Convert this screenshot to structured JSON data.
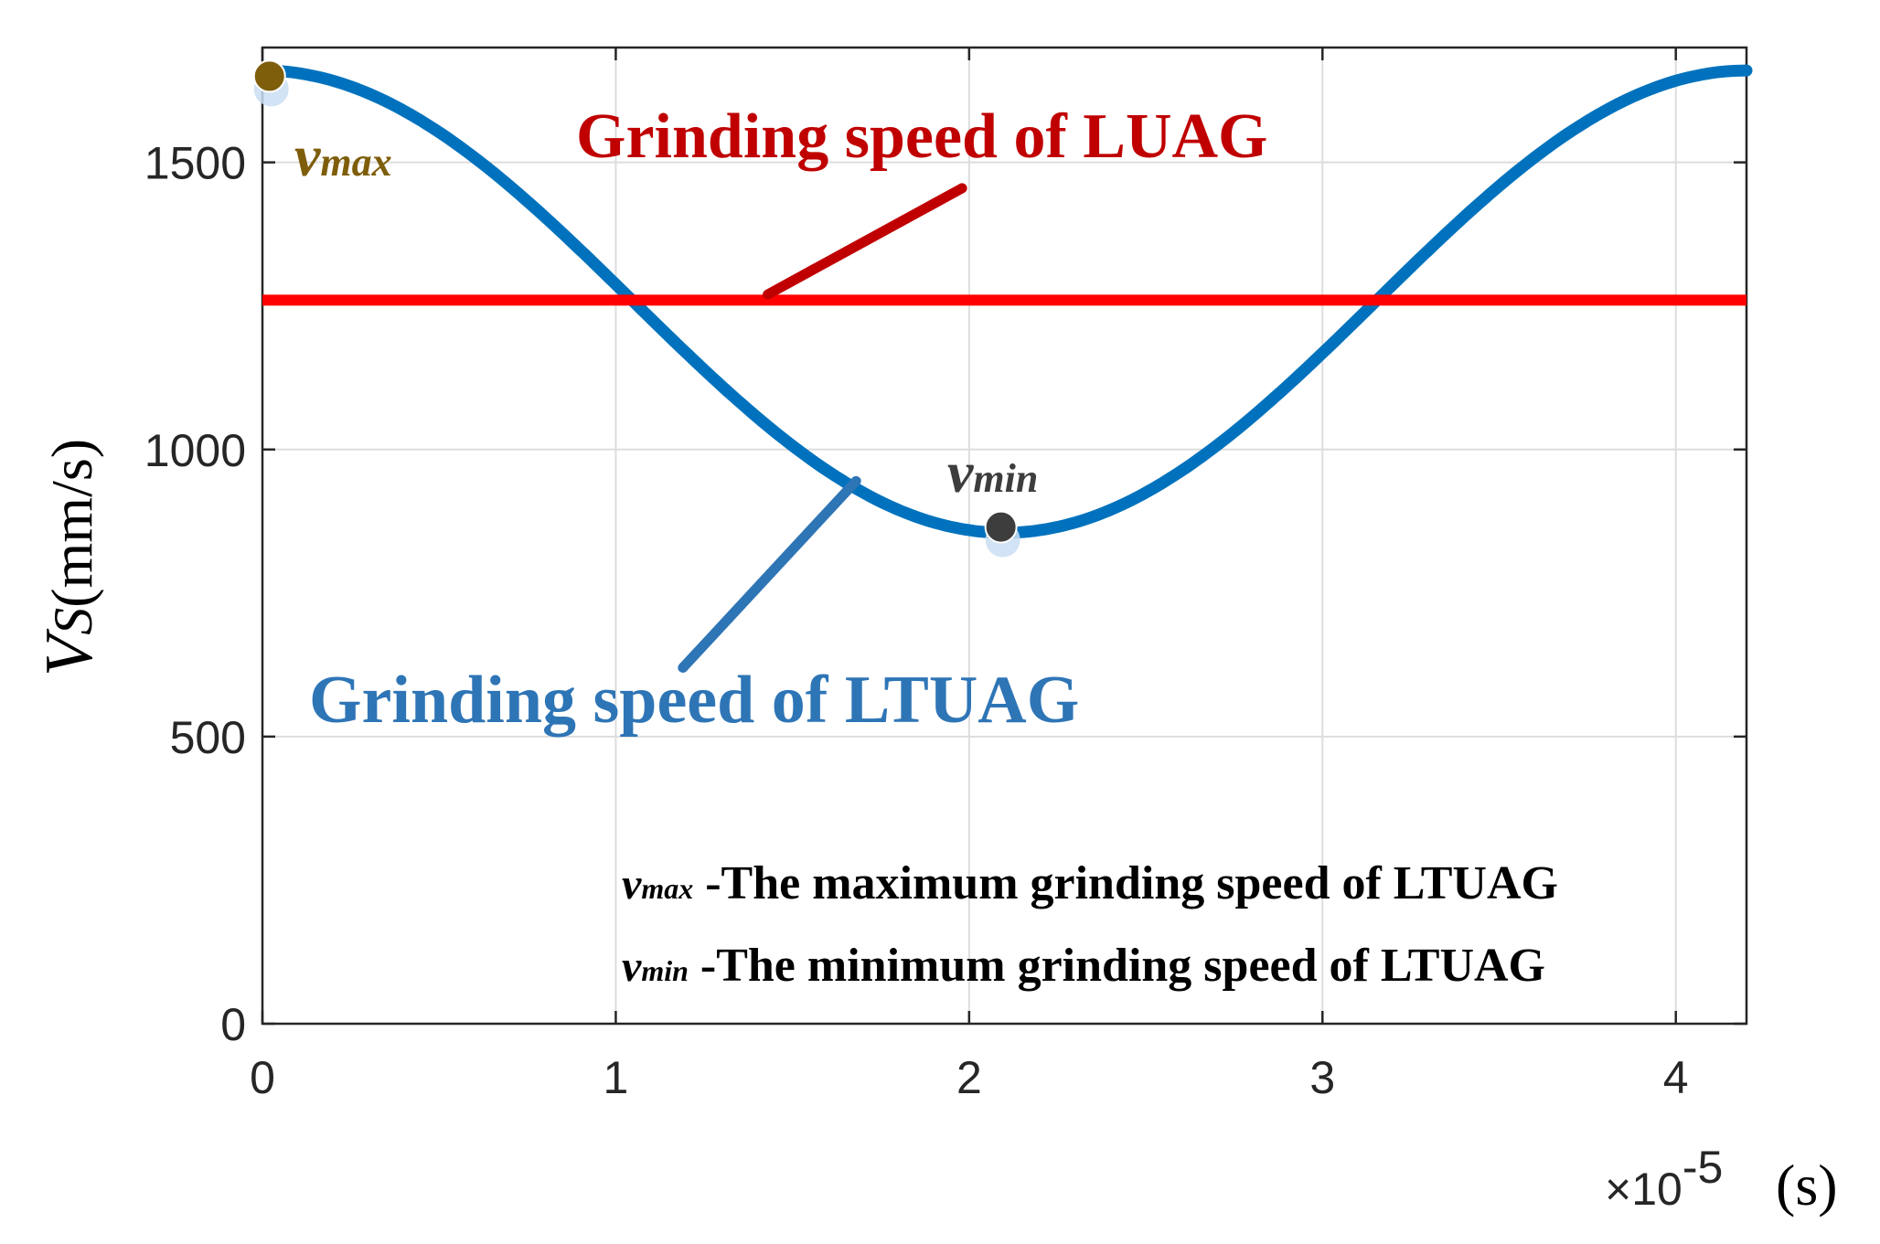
{
  "chart_data": {
    "type": "line",
    "ylabel": {
      "var": "V",
      "sub": "S",
      "unit": "(mm/s)"
    },
    "x_exponent": {
      "times": "×",
      "base": "10",
      "exp": "-5",
      "unit": "(s)"
    },
    "x_scale": 1e-05,
    "xlim": [
      0,
      4.2
    ],
    "ylim": [
      0,
      1700
    ],
    "x_ticks": [
      0,
      1,
      2,
      3,
      4
    ],
    "x_tick_labels": [
      "0",
      "1",
      "2",
      "3",
      "4"
    ],
    "y_ticks": [
      0,
      500,
      1000,
      1500
    ],
    "y_tick_labels": [
      "0",
      "500",
      "1000",
      "1500"
    ],
    "grid": true,
    "series": [
      {
        "name": "Grinding speed of LTUAG",
        "kind": "cosine",
        "max": 1660,
        "min": 855,
        "period": 4.2,
        "color": "#0072BD"
      },
      {
        "name": "Grinding speed of LUAG",
        "kind": "constant",
        "value": 1260,
        "color": "#FF0000"
      }
    ],
    "points": [
      {
        "name": "vmax",
        "x": 0.02,
        "y": 1650,
        "color": "#7E5E0B"
      },
      {
        "name": "vmin",
        "x": 2.09,
        "y": 865,
        "color": "#3D3D3D"
      }
    ],
    "annotations": {
      "luag_label": {
        "text": "Grinding speed of LUAG",
        "color": "#C00000"
      },
      "ltuag_label": {
        "text": "Grinding speed of LTUAG",
        "color": "#2E75B6"
      },
      "vmax_label": {
        "base": "v",
        "sub": "max",
        "color": "#7E5E0B"
      },
      "vmin_label": {
        "base": "v",
        "sub": "min",
        "color": "#3D3D3D"
      }
    },
    "legend_notes": [
      {
        "base": "v",
        "sub": "max",
        "text": " -The maximum grinding speed of LTUAG"
      },
      {
        "base": "v",
        "sub": "min",
        "text": " -The minimum grinding speed of LTUAG"
      }
    ]
  }
}
